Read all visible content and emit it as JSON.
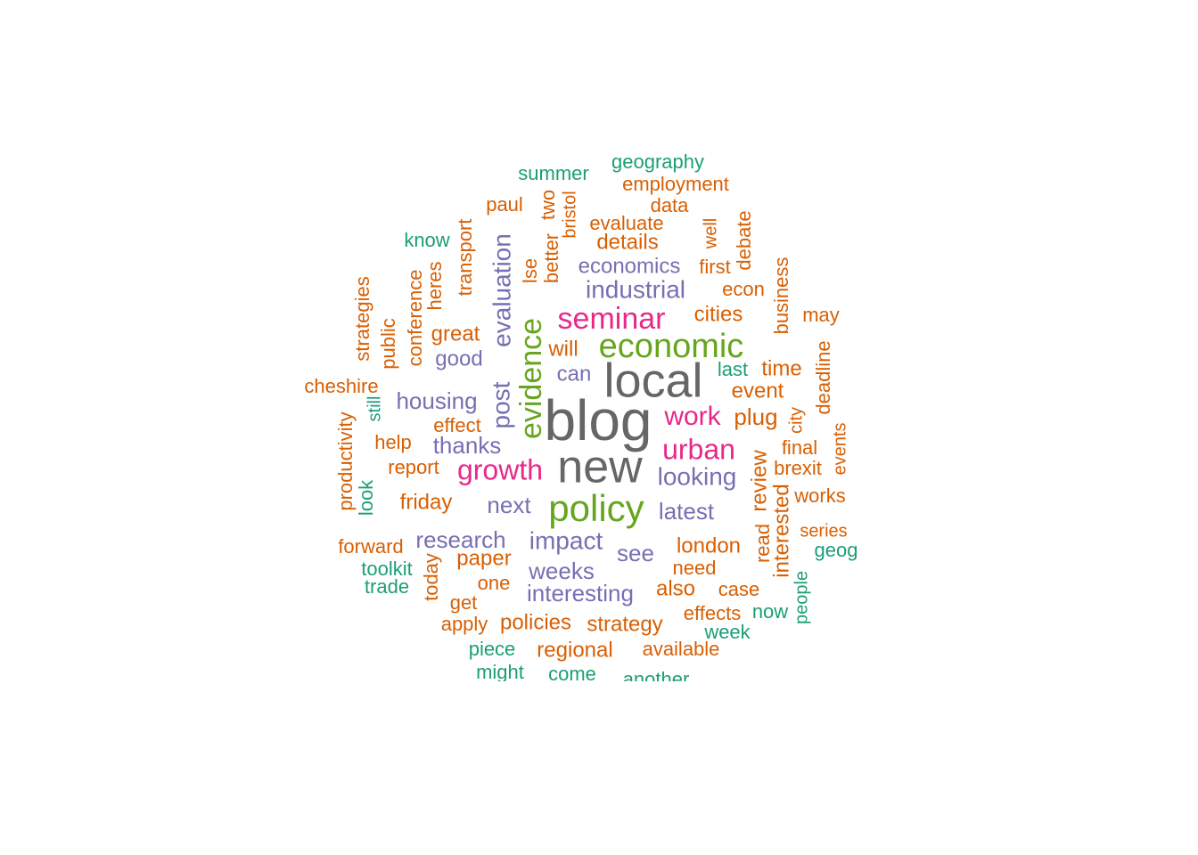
{
  "chart_data": {
    "type": "wordcloud",
    "palette": {
      "teal": "#1b9e77",
      "orange": "#d95f02",
      "purple": "#7570b3",
      "pink": "#e7298a",
      "green": "#66a61e",
      "gray": "#666666"
    },
    "words": [
      {
        "text": "blog",
        "color": "gray",
        "rotated": false
      },
      {
        "text": "new",
        "color": "gray",
        "rotated": false
      },
      {
        "text": "local",
        "color": "gray",
        "rotated": false
      },
      {
        "text": "policy",
        "color": "green",
        "rotated": false
      },
      {
        "text": "economic",
        "color": "green",
        "rotated": false
      },
      {
        "text": "evidence",
        "color": "green",
        "rotated": true
      },
      {
        "text": "seminar",
        "color": "pink",
        "rotated": false
      },
      {
        "text": "growth",
        "color": "pink",
        "rotated": false
      },
      {
        "text": "urban",
        "color": "pink",
        "rotated": false
      },
      {
        "text": "work",
        "color": "pink",
        "rotated": false
      },
      {
        "text": "industrial",
        "color": "purple",
        "rotated": false
      },
      {
        "text": "impact",
        "color": "purple",
        "rotated": false
      },
      {
        "text": "looking",
        "color": "purple",
        "rotated": false
      },
      {
        "text": "evaluation",
        "color": "purple",
        "rotated": true
      },
      {
        "text": "post",
        "color": "purple",
        "rotated": true
      },
      {
        "text": "housing",
        "color": "purple",
        "rotated": false
      },
      {
        "text": "thanks",
        "color": "purple",
        "rotated": false
      },
      {
        "text": "research",
        "color": "purple",
        "rotated": false
      },
      {
        "text": "weeks",
        "color": "purple",
        "rotated": false
      },
      {
        "text": "interesting",
        "color": "purple",
        "rotated": false
      },
      {
        "text": "economics",
        "color": "purple",
        "rotated": false
      },
      {
        "text": "next",
        "color": "purple",
        "rotated": false
      },
      {
        "text": "latest",
        "color": "purple",
        "rotated": false
      },
      {
        "text": "see",
        "color": "purple",
        "rotated": false
      },
      {
        "text": "can",
        "color": "purple",
        "rotated": false
      },
      {
        "text": "good",
        "color": "purple",
        "rotated": false
      },
      {
        "text": "cities",
        "color": "orange",
        "rotated": false
      },
      {
        "text": "great",
        "color": "orange",
        "rotated": false
      },
      {
        "text": "plug",
        "color": "orange",
        "rotated": false
      },
      {
        "text": "event",
        "color": "orange",
        "rotated": false
      },
      {
        "text": "time",
        "color": "orange",
        "rotated": false
      },
      {
        "text": "london",
        "color": "orange",
        "rotated": false
      },
      {
        "text": "details",
        "color": "orange",
        "rotated": false
      },
      {
        "text": "review",
        "color": "orange",
        "rotated": true
      },
      {
        "text": "interested",
        "color": "orange",
        "rotated": true
      },
      {
        "text": "will",
        "color": "orange",
        "rotated": false
      },
      {
        "text": "friday",
        "color": "orange",
        "rotated": false
      },
      {
        "text": "paper",
        "color": "orange",
        "rotated": false
      },
      {
        "text": "regional",
        "color": "orange",
        "rotated": false
      },
      {
        "text": "strategy",
        "color": "orange",
        "rotated": false
      },
      {
        "text": "policies",
        "color": "orange",
        "rotated": false
      },
      {
        "text": "also",
        "color": "orange",
        "rotated": false
      },
      {
        "text": "help",
        "color": "orange",
        "rotated": false
      },
      {
        "text": "report",
        "color": "orange",
        "rotated": false
      },
      {
        "text": "effect",
        "color": "orange",
        "rotated": false
      },
      {
        "text": "one",
        "color": "orange",
        "rotated": false
      },
      {
        "text": "transport",
        "color": "orange",
        "rotated": true
      },
      {
        "text": "conference",
        "color": "orange",
        "rotated": true
      },
      {
        "text": "heres",
        "color": "orange",
        "rotated": true
      },
      {
        "text": "better",
        "color": "orange",
        "rotated": true
      },
      {
        "text": "lse",
        "color": "orange",
        "rotated": true
      },
      {
        "text": "two",
        "color": "orange",
        "rotated": true
      },
      {
        "text": "bristol",
        "color": "orange",
        "rotated": true
      },
      {
        "text": "paul",
        "color": "orange",
        "rotated": false
      },
      {
        "text": "employment",
        "color": "orange",
        "rotated": false
      },
      {
        "text": "data",
        "color": "orange",
        "rotated": false
      },
      {
        "text": "evaluate",
        "color": "orange",
        "rotated": false
      },
      {
        "text": "well",
        "color": "orange",
        "rotated": true
      },
      {
        "text": "debate",
        "color": "orange",
        "rotated": true
      },
      {
        "text": "first",
        "color": "orange",
        "rotated": false
      },
      {
        "text": "econ",
        "color": "orange",
        "rotated": false
      },
      {
        "text": "business",
        "color": "orange",
        "rotated": true
      },
      {
        "text": "may",
        "color": "orange",
        "rotated": false
      },
      {
        "text": "deadline",
        "color": "orange",
        "rotated": true
      },
      {
        "text": "city",
        "color": "orange",
        "rotated": true
      },
      {
        "text": "final",
        "color": "orange",
        "rotated": false
      },
      {
        "text": "brexit",
        "color": "orange",
        "rotated": false
      },
      {
        "text": "events",
        "color": "orange",
        "rotated": true
      },
      {
        "text": "works",
        "color": "orange",
        "rotated": false
      },
      {
        "text": "read",
        "color": "orange",
        "rotated": true
      },
      {
        "text": "series",
        "color": "orange",
        "rotated": false
      },
      {
        "text": "need",
        "color": "orange",
        "rotated": false
      },
      {
        "text": "case",
        "color": "orange",
        "rotated": false
      },
      {
        "text": "effects",
        "color": "orange",
        "rotated": false
      },
      {
        "text": "available",
        "color": "orange",
        "rotated": false
      },
      {
        "text": "apply",
        "color": "orange",
        "rotated": false
      },
      {
        "text": "get",
        "color": "orange",
        "rotated": false
      },
      {
        "text": "today",
        "color": "orange",
        "rotated": true
      },
      {
        "text": "forward",
        "color": "orange",
        "rotated": false
      },
      {
        "text": "productivity",
        "color": "orange",
        "rotated": true
      },
      {
        "text": "cheshire",
        "color": "orange",
        "rotated": false
      },
      {
        "text": "strategies",
        "color": "orange",
        "rotated": true
      },
      {
        "text": "public",
        "color": "orange",
        "rotated": true
      },
      {
        "text": "summer",
        "color": "teal",
        "rotated": false
      },
      {
        "text": "geography",
        "color": "teal",
        "rotated": false
      },
      {
        "text": "know",
        "color": "teal",
        "rotated": false
      },
      {
        "text": "still",
        "color": "teal",
        "rotated": true
      },
      {
        "text": "look",
        "color": "teal",
        "rotated": true
      },
      {
        "text": "last",
        "color": "teal",
        "rotated": false
      },
      {
        "text": "toolkit",
        "color": "teal",
        "rotated": false
      },
      {
        "text": "trade",
        "color": "teal",
        "rotated": false
      },
      {
        "text": "piece",
        "color": "teal",
        "rotated": false
      },
      {
        "text": "might",
        "color": "teal",
        "rotated": false
      },
      {
        "text": "come",
        "color": "teal",
        "rotated": false
      },
      {
        "text": "another",
        "color": "teal",
        "rotated": false
      },
      {
        "text": "week",
        "color": "teal",
        "rotated": false
      },
      {
        "text": "now",
        "color": "teal",
        "rotated": false
      },
      {
        "text": "people",
        "color": "teal",
        "rotated": true
      },
      {
        "text": "geog",
        "color": "teal",
        "rotated": false
      }
    ]
  }
}
